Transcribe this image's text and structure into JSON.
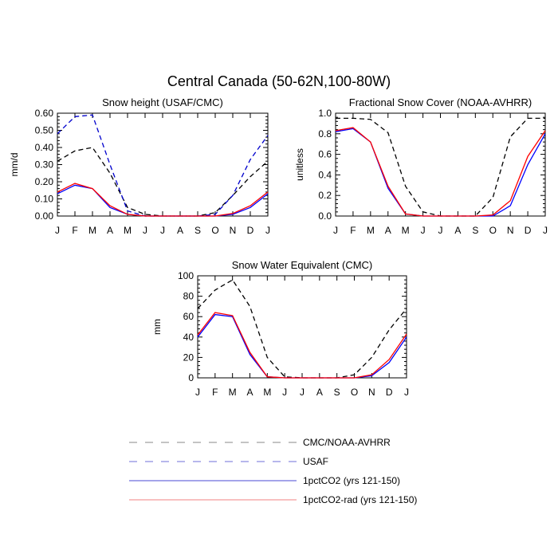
{
  "figure": {
    "title": "Central Canada (50-62N,100-80W)"
  },
  "legend": [
    {
      "label": "CMC/NOAA-AVHRR",
      "color": "#8a8a8a",
      "dash": true
    },
    {
      "label": "USAF",
      "color": "#6f6fd9",
      "dash": true
    },
    {
      "label": "1pctCO2 (yrs 121-150)",
      "color": "#4a4ad6",
      "dash": false
    },
    {
      "label": "1pctCO2-rad (yrs 121-150)",
      "color": "#f08080",
      "dash": false
    }
  ],
  "chart_data": [
    {
      "type": "line",
      "title": "Snow height (USAF/CMC)",
      "ylabel": "mm/d",
      "xlabel": "",
      "categories": [
        "J",
        "F",
        "M",
        "A",
        "M",
        "J",
        "J",
        "A",
        "S",
        "O",
        "N",
        "D",
        "J"
      ],
      "ylim": [
        0,
        0.6
      ],
      "yticks": [
        0,
        0.1,
        0.2,
        0.3,
        0.4,
        0.5,
        0.6
      ],
      "ytick_labels": [
        "0.00",
        "0.10",
        "0.20",
        "0.30",
        "0.40",
        "0.50",
        "0.60"
      ],
      "series": [
        {
          "values": [
            0.32,
            0.38,
            0.4,
            0.25,
            0.05,
            0.01,
            0.0,
            0.0,
            0.0,
            0.02,
            0.12,
            0.23,
            0.32
          ],
          "color": "#000000",
          "dash": true
        },
        {
          "values": [
            0.48,
            0.58,
            0.59,
            0.3,
            0.03,
            0.0,
            0.0,
            0.0,
            0.0,
            0.01,
            0.12,
            0.33,
            0.47
          ],
          "color": "#0000cc",
          "dash": true
        },
        {
          "values": [
            0.13,
            0.18,
            0.16,
            0.05,
            0.01,
            0.0,
            0.0,
            0.0,
            0.0,
            0.0,
            0.01,
            0.05,
            0.13
          ],
          "color": "#0000ff",
          "dash": false
        },
        {
          "values": [
            0.14,
            0.19,
            0.16,
            0.06,
            0.01,
            0.0,
            0.0,
            0.0,
            0.0,
            0.0,
            0.015,
            0.06,
            0.14
          ],
          "color": "#ff0000",
          "dash": false
        }
      ]
    },
    {
      "type": "line",
      "title": "Fractional Snow Cover (NOAA-AVHRR)",
      "ylabel": "unitless",
      "xlabel": "",
      "categories": [
        "J",
        "F",
        "M",
        "A",
        "M",
        "J",
        "J",
        "A",
        "S",
        "O",
        "N",
        "D",
        "J"
      ],
      "ylim": [
        0,
        1.0
      ],
      "yticks": [
        0,
        0.2,
        0.4,
        0.6,
        0.8,
        1.0
      ],
      "ytick_labels": [
        "0.0",
        "0.2",
        "0.4",
        "0.6",
        "0.8",
        "1.0"
      ],
      "series": [
        {
          "values": [
            0.95,
            0.95,
            0.94,
            0.81,
            0.29,
            0.04,
            0.0,
            0.0,
            0.0,
            0.18,
            0.77,
            0.95,
            0.95
          ],
          "color": "#000000",
          "dash": true
        },
        {
          "values": [
            0.82,
            0.85,
            0.72,
            0.27,
            0.02,
            0.0,
            0.0,
            0.0,
            0.0,
            0.0,
            0.1,
            0.5,
            0.8
          ],
          "color": "#0000ff",
          "dash": false
        },
        {
          "values": [
            0.83,
            0.86,
            0.72,
            0.29,
            0.02,
            0.0,
            0.0,
            0.0,
            0.0,
            0.01,
            0.15,
            0.58,
            0.83
          ],
          "color": "#ff0000",
          "dash": false
        }
      ]
    },
    {
      "type": "line",
      "title": "Snow Water Equivalent (CMC)",
      "ylabel": "mm",
      "xlabel": "",
      "categories": [
        "J",
        "F",
        "M",
        "A",
        "M",
        "J",
        "J",
        "A",
        "S",
        "O",
        "N",
        "D",
        "J"
      ],
      "ylim": [
        0,
        100
      ],
      "yticks": [
        0,
        20,
        40,
        60,
        80,
        100
      ],
      "ytick_labels": [
        "0",
        "20",
        "40",
        "60",
        "80",
        "100"
      ],
      "series": [
        {
          "values": [
            68,
            86,
            96,
            70,
            20,
            1,
            0,
            0,
            0,
            3,
            20,
            47,
            68
          ],
          "color": "#000000",
          "dash": true
        },
        {
          "values": [
            40,
            62,
            60,
            23,
            1,
            0,
            0,
            0,
            0,
            0,
            2,
            15,
            40
          ],
          "color": "#0000ff",
          "dash": false
        },
        {
          "values": [
            42,
            64,
            61,
            25,
            1,
            0,
            0,
            0,
            0,
            0,
            3,
            18,
            43
          ],
          "color": "#ff0000",
          "dash": false
        }
      ]
    }
  ]
}
